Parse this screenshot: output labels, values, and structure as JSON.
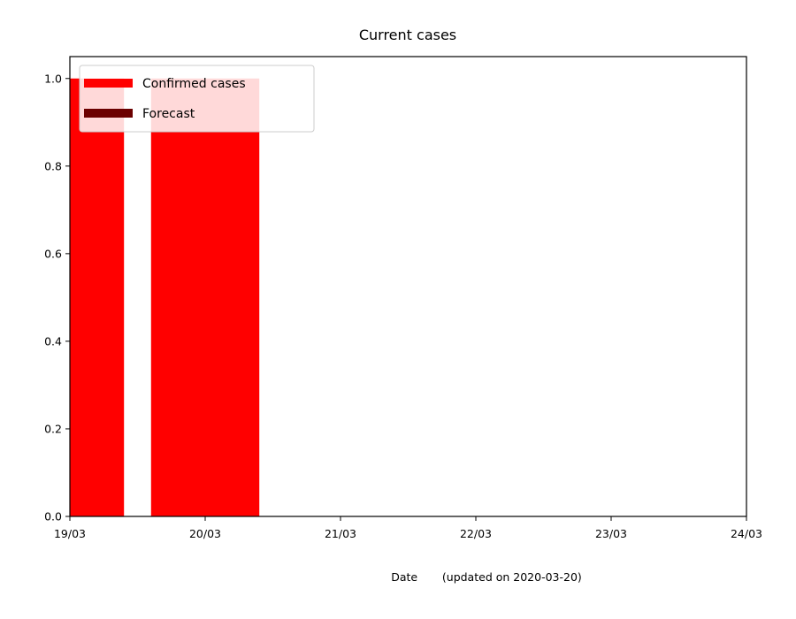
{
  "chart_data": {
    "type": "bar",
    "title": "Current cases",
    "xlabel": "Date       (updated on 2020-03-20)",
    "ylabel": "",
    "x_ticks": [
      "19/03",
      "20/03",
      "21/03",
      "22/03",
      "23/03",
      "24/03"
    ],
    "y_ticks": [
      "0.0",
      "0.2",
      "0.4",
      "0.6",
      "0.8",
      "1.0"
    ],
    "xlim": [
      "2020-03-19",
      "2020-03-24"
    ],
    "ylim": [
      0,
      1.05
    ],
    "bar_width_days": 0.8,
    "series": [
      {
        "name": "Confirmed cases",
        "color": "#ff0000",
        "points": [
          {
            "date": "2020-03-19",
            "value": 1
          },
          {
            "date": "2020-03-20",
            "value": 1
          }
        ]
      },
      {
        "name": "Forecast",
        "color": "#6b0000",
        "points": []
      }
    ],
    "legend": "top-left",
    "grid": false
  }
}
